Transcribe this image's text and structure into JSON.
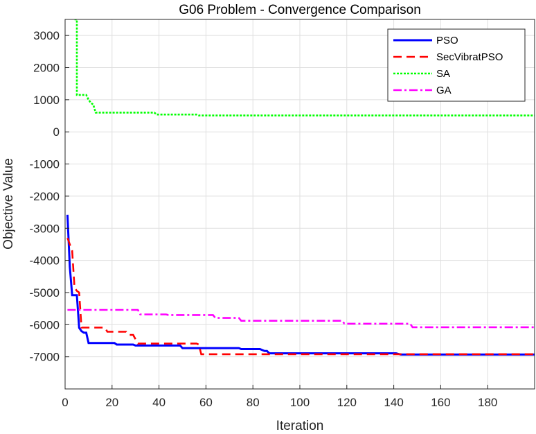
{
  "chart_data": {
    "type": "line",
    "title": "G06 Problem - Convergence Comparison",
    "xlabel": "Iteration",
    "ylabel": "Objective Value",
    "xlim": [
      0,
      200
    ],
    "ylim": [
      -8000,
      3500
    ],
    "xticks": [
      0,
      20,
      40,
      60,
      80,
      100,
      120,
      140,
      160,
      180
    ],
    "yticks": [
      -7000,
      -6000,
      -5000,
      -4000,
      -3000,
      -2000,
      -1000,
      0,
      1000,
      2000,
      3000
    ],
    "grid": true,
    "legend_position": "top-right",
    "series": [
      {
        "name": "PSO",
        "color": "#0000ff",
        "dash": "solid",
        "points": [
          [
            1,
            -2580
          ],
          [
            2,
            -4200
          ],
          [
            3,
            -5080
          ],
          [
            4,
            -5080
          ],
          [
            5,
            -5080
          ],
          [
            6,
            -6100
          ],
          [
            7,
            -6200
          ],
          [
            8,
            -6250
          ],
          [
            9,
            -6250
          ],
          [
            10,
            -6570
          ],
          [
            21,
            -6570
          ],
          [
            22,
            -6620
          ],
          [
            29,
            -6620
          ],
          [
            30,
            -6650
          ],
          [
            49,
            -6650
          ],
          [
            50,
            -6730
          ],
          [
            74,
            -6730
          ],
          [
            75,
            -6760
          ],
          [
            83,
            -6760
          ],
          [
            85,
            -6820
          ],
          [
            86,
            -6820
          ],
          [
            87,
            -6890
          ],
          [
            141,
            -6890
          ],
          [
            143,
            -6930
          ],
          [
            200,
            -6930
          ]
        ]
      },
      {
        "name": "SecVibratPSO",
        "color": "#ff0000",
        "dash": "dashed",
        "points": [
          [
            1,
            -3300
          ],
          [
            2,
            -3500
          ],
          [
            3,
            -3700
          ],
          [
            4,
            -4850
          ],
          [
            5,
            -4950
          ],
          [
            6,
            -5000
          ],
          [
            7,
            -6090
          ],
          [
            17,
            -6090
          ],
          [
            18,
            -6220
          ],
          [
            26,
            -6220
          ],
          [
            27,
            -6320
          ],
          [
            29,
            -6320
          ],
          [
            31,
            -6590
          ],
          [
            56,
            -6590
          ],
          [
            57,
            -6620
          ],
          [
            58,
            -6920
          ],
          [
            200,
            -6920
          ]
        ]
      },
      {
        "name": "SA",
        "color": "#00ff00",
        "dash": "dotted",
        "points": [
          [
            4,
            3500
          ],
          [
            5,
            3500
          ],
          [
            5,
            1150
          ],
          [
            9,
            1150
          ],
          [
            10,
            1000
          ],
          [
            11,
            900
          ],
          [
            12,
            850
          ],
          [
            13,
            600
          ],
          [
            38,
            600
          ],
          [
            39,
            540
          ],
          [
            56,
            540
          ],
          [
            57,
            510
          ],
          [
            200,
            510
          ]
        ]
      },
      {
        "name": "GA",
        "color": "#ff00ff",
        "dash": "dashdot",
        "points": [
          [
            1,
            -5540
          ],
          [
            31,
            -5540
          ],
          [
            32,
            -5680
          ],
          [
            43,
            -5680
          ],
          [
            44,
            -5700
          ],
          [
            63,
            -5700
          ],
          [
            64,
            -5790
          ],
          [
            74,
            -5790
          ],
          [
            75,
            -5880
          ],
          [
            118,
            -5880
          ],
          [
            119,
            -5970
          ],
          [
            147,
            -5970
          ],
          [
            148,
            -6080
          ],
          [
            200,
            -6080
          ]
        ]
      }
    ]
  }
}
